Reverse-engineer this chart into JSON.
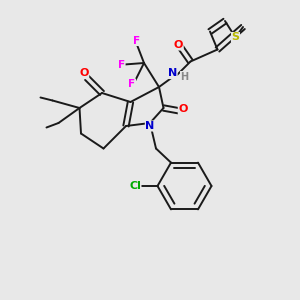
{
  "bg_color": "#e8e8e8",
  "bond_color": "#1a1a1a",
  "atom_colors": {
    "O": "#ff0000",
    "N": "#0000cd",
    "F": "#ff00ff",
    "S": "#b8b800",
    "Cl": "#00aa00",
    "H": "#888888",
    "C": "#1a1a1a"
  },
  "figsize": [
    3.0,
    3.0
  ],
  "dpi": 100,
  "lw": 1.4,
  "fs": 7.5
}
